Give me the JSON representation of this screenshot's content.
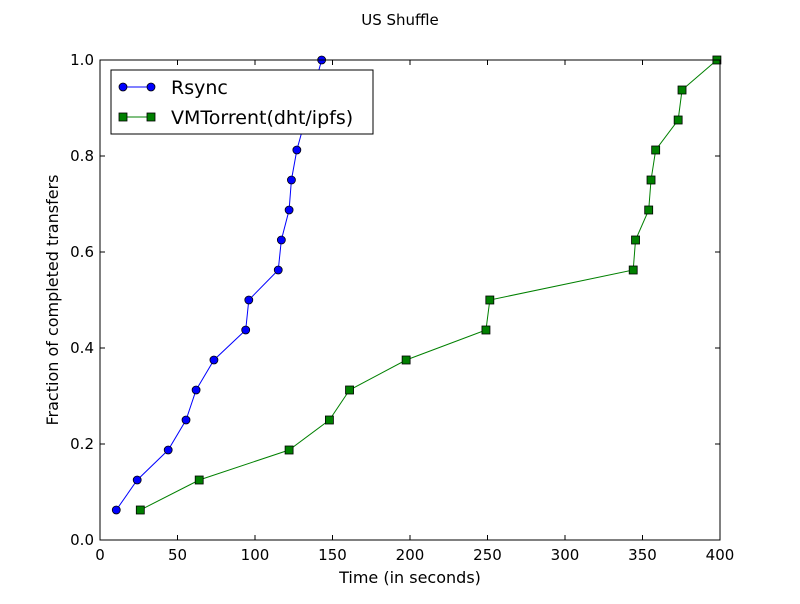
{
  "chart_data": {
    "type": "line",
    "title": "US Shuffle",
    "xlabel": "Time (in seconds)",
    "ylabel": "Fraction of completed transfers",
    "xlim": [
      0,
      400
    ],
    "ylim": [
      0.0,
      1.0
    ],
    "xticks": [
      0,
      50,
      100,
      150,
      200,
      250,
      300,
      350,
      400
    ],
    "yticks": [
      0.0,
      0.2,
      0.4,
      0.6,
      0.8,
      1.0
    ],
    "xtick_labels": [
      "0",
      "50",
      "100",
      "150",
      "200",
      "250",
      "300",
      "350",
      "400"
    ],
    "ytick_labels": [
      "0.0",
      "0.2",
      "0.4",
      "0.6",
      "0.8",
      "1.0"
    ],
    "grid": false,
    "legend": {
      "position": "top-left"
    },
    "series": [
      {
        "name": "Rsync",
        "color": "#0000ff",
        "marker": "circle",
        "x": [
          10.5,
          24,
          44,
          55.5,
          62,
          73.5,
          94,
          96,
          115,
          117,
          122,
          123.5,
          127,
          143
        ],
        "y": [
          0.0625,
          0.125,
          0.1875,
          0.25,
          0.3125,
          0.375,
          0.4375,
          0.5,
          0.5625,
          0.625,
          0.6875,
          0.75,
          0.8125,
          1.0
        ]
      },
      {
        "name": "VMTorrent(dht/ipfs)",
        "color": "#008000",
        "marker": "square",
        "x": [
          26,
          64,
          122,
          148,
          161,
          197.5,
          249,
          251.5,
          344,
          345.5,
          354,
          355.5,
          358.5,
          373,
          375.5,
          398
        ],
        "y": [
          0.0625,
          0.125,
          0.1875,
          0.25,
          0.3125,
          0.375,
          0.4375,
          0.5,
          0.5625,
          0.625,
          0.6875,
          0.75,
          0.8125,
          0.875,
          0.9375,
          1.0
        ]
      }
    ]
  }
}
